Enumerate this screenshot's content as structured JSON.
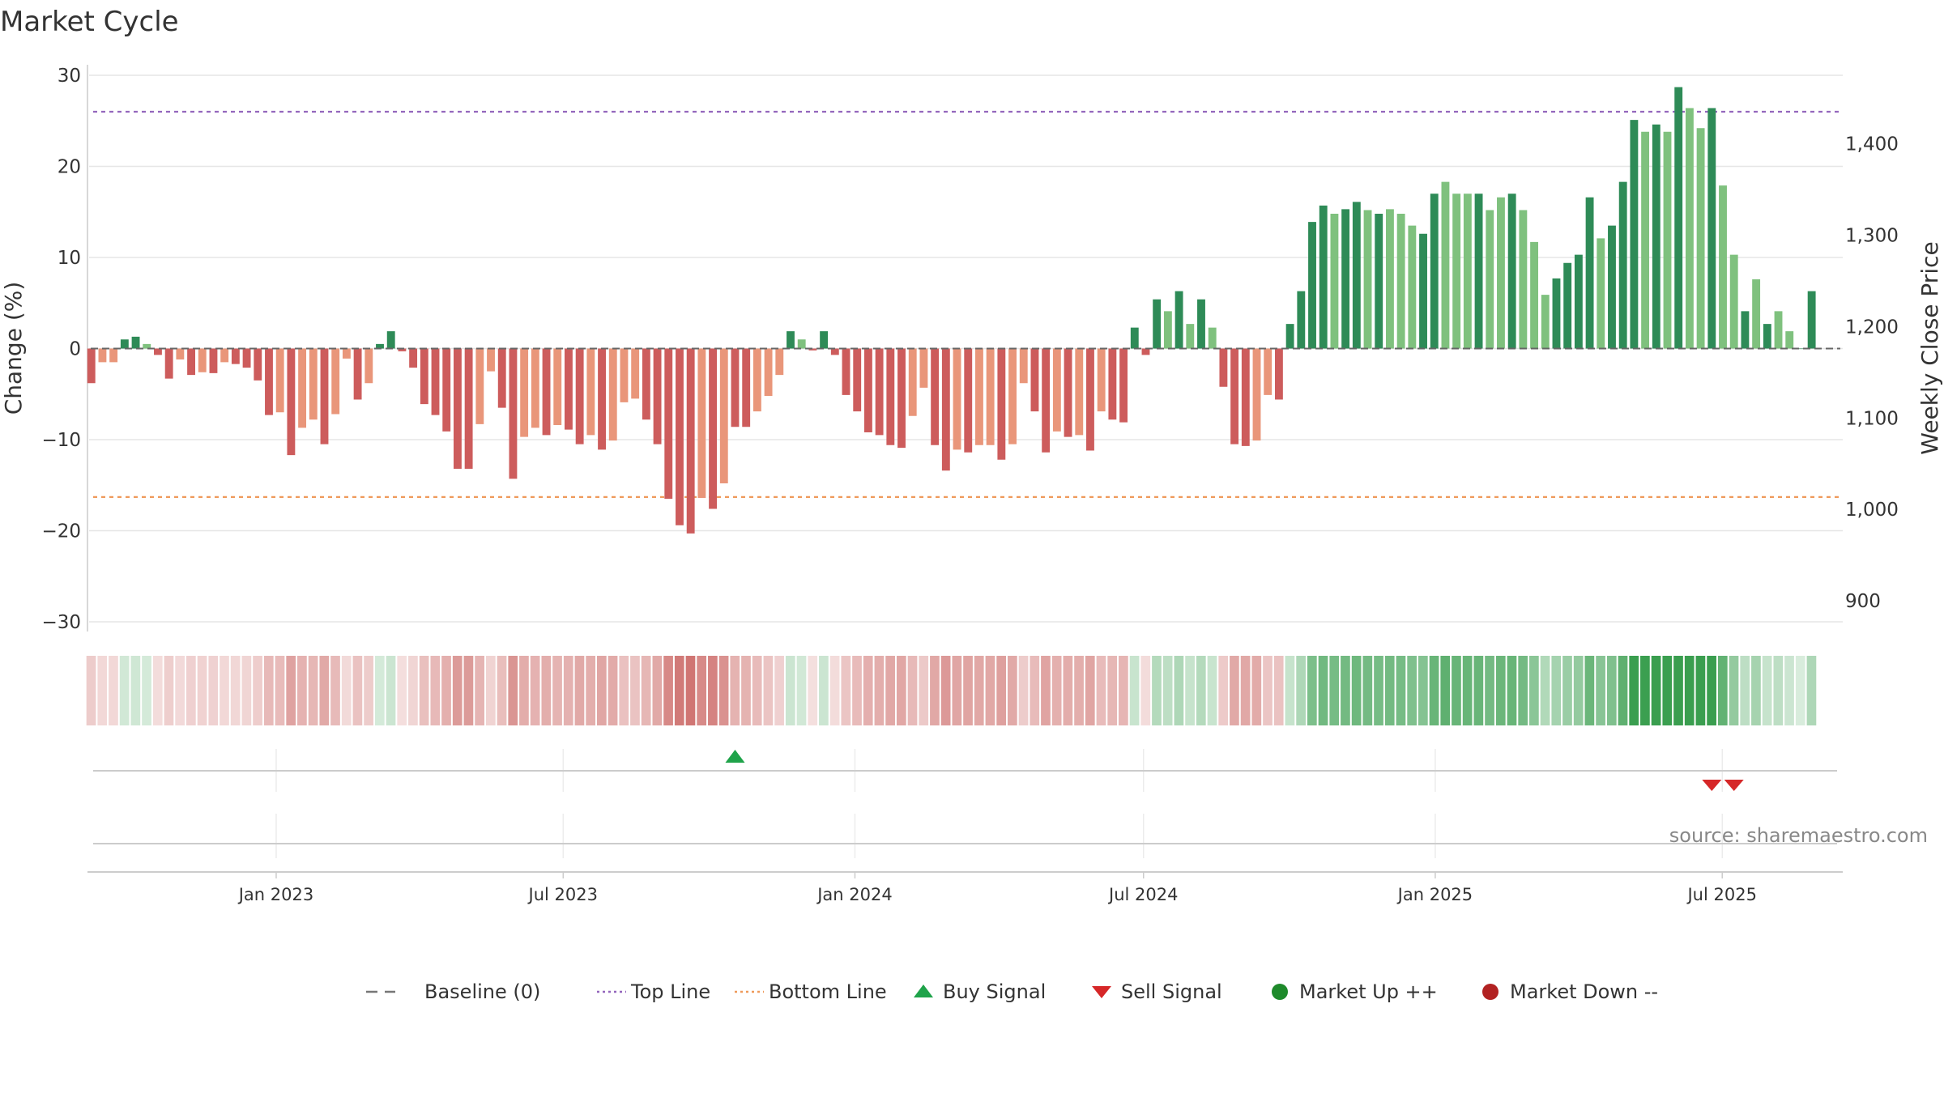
{
  "chart_data": {
    "type": "bar",
    "title": "Market Cycle",
    "ylabel": "Change (%)",
    "y2label": "Weekly Close Price",
    "ylim": [
      -30,
      30
    ],
    "y2lim": [
      877,
      1475
    ],
    "yticks": [
      "30",
      "20",
      "10",
      "0",
      "−10",
      "−20",
      "−30"
    ],
    "ytick_values": [
      30,
      20,
      10,
      0,
      -10,
      -20,
      -30
    ],
    "y2ticks": [
      "1,400",
      "1,300",
      "1,200",
      "1,100",
      "1,000",
      "900"
    ],
    "y2tick_values": [
      1400,
      1300,
      1200,
      1100,
      1000,
      900
    ],
    "x_range": [
      "2022-09-05",
      "2025-09-15"
    ],
    "x_ticks": [
      {
        "label": "Jan 2023",
        "date": "2023-01-01"
      },
      {
        "label": "Jul 2023",
        "date": "2023-07-01"
      },
      {
        "label": "Jan 2024",
        "date": "2024-01-01"
      },
      {
        "label": "Jul 2024",
        "date": "2024-07-01"
      },
      {
        "label": "Jan 2025",
        "date": "2025-01-01"
      },
      {
        "label": "Jul 2025",
        "date": "2025-07-01"
      }
    ],
    "start_week": "2022-09-05",
    "values": [
      -3.8,
      -1.5,
      -1.5,
      1,
      1.3,
      0.5,
      -0.7,
      -3.3,
      -1.2,
      -2.9,
      -2.6,
      -2.7,
      -1.5,
      -1.7,
      -2.1,
      -3.5,
      -7.3,
      -7,
      -11.7,
      -8.7,
      -7.8,
      -10.5,
      -7.2,
      -1.1,
      -5.6,
      -3.8,
      0.5,
      1.9,
      -0.3,
      -2.1,
      -6.1,
      -7.3,
      -9.1,
      -13.2,
      -13.2,
      -8.3,
      -2.5,
      -6.5,
      -14.3,
      -9.7,
      -8.7,
      -9.5,
      -8.4,
      -8.9,
      -10.5,
      -9.5,
      -11.1,
      -10.1,
      -5.9,
      -5.5,
      -7.8,
      -10.5,
      -16.5,
      -19.4,
      -20.3,
      -16.4,
      -17.6,
      -14.8,
      -8.6,
      -8.6,
      -6.9,
      -5.2,
      -2.9,
      1.9,
      1,
      -0.2,
      1.9,
      -0.7,
      -5.1,
      -6.9,
      -9.2,
      -9.5,
      -10.6,
      -10.9,
      -7.4,
      -4.3,
      -10.6,
      -13.4,
      -11.1,
      -11.4,
      -10.6,
      -10.6,
      -12.2,
      -10.5,
      -3.8,
      -6.9,
      -11.4,
      -9.1,
      -9.7,
      -9.5,
      -11.2,
      -6.9,
      -7.8,
      -8.1,
      2.3,
      -0.7,
      5.4,
      4.1,
      6.3,
      2.7,
      5.4,
      2.3,
      -4.2,
      -10.5,
      -10.7,
      -10.1,
      -5.1,
      -5.6,
      2.7,
      6.3,
      13.9,
      15.7,
      14.8,
      15.3,
      16.1,
      15.2,
      14.8,
      15.3,
      14.8,
      13.5,
      12.6,
      17,
      18.3,
      17,
      17,
      17,
      15.2,
      16.6,
      17,
      15.2,
      11.7,
      5.9,
      7.7,
      9.4,
      10.3,
      16.6,
      12.1,
      13.5,
      18.3,
      25.1,
      23.8,
      24.6,
      23.8,
      28.7,
      26.4,
      24.2,
      26.4,
      17.9,
      10.3,
      4.1,
      7.6,
      2.7,
      4.1,
      1.9,
      0,
      6.3
    ],
    "shades": [
      "d",
      "l",
      "l",
      "d",
      "d",
      "l",
      "d",
      "d",
      "l",
      "d",
      "l",
      "d",
      "l",
      "d",
      "d",
      "d",
      "d",
      "l",
      "d",
      "l",
      "l",
      "d",
      "l",
      "l",
      "d",
      "l",
      "d",
      "d",
      "d",
      "d",
      "d",
      "d",
      "d",
      "d",
      "d",
      "l",
      "l",
      "d",
      "d",
      "l",
      "l",
      "d",
      "l",
      "d",
      "d",
      "l",
      "d",
      "l",
      "l",
      "l",
      "d",
      "d",
      "d",
      "d",
      "d",
      "l",
      "d",
      "l",
      "d",
      "d",
      "l",
      "l",
      "l",
      "d",
      "l",
      "d",
      "d",
      "d",
      "d",
      "d",
      "d",
      "d",
      "d",
      "d",
      "l",
      "l",
      "d",
      "d",
      "l",
      "d",
      "l",
      "l",
      "d",
      "l",
      "l",
      "d",
      "d",
      "l",
      "d",
      "l",
      "d",
      "l",
      "d",
      "d",
      "d",
      "d",
      "d",
      "l",
      "d",
      "l",
      "d",
      "l",
      "d",
      "d",
      "d",
      "l",
      "l",
      "d",
      "d",
      "d",
      "d",
      "d",
      "l",
      "d",
      "d",
      "l",
      "d",
      "l",
      "l",
      "l",
      "d",
      "d",
      "l",
      "l",
      "l",
      "d",
      "l",
      "l",
      "d",
      "l",
      "l",
      "l",
      "d",
      "d",
      "d",
      "d",
      "l",
      "d",
      "d",
      "d",
      "l",
      "d",
      "l",
      "d",
      "l",
      "l",
      "d",
      "l",
      "l",
      "d",
      "l",
      "d",
      "l",
      "l",
      "d",
      "d"
    ],
    "top_line": 26,
    "bottom_line": -16.3,
    "buy_signals": [
      "2023-10-16"
    ],
    "sell_signals": [
      "2025-06-23",
      "2025-07-07"
    ],
    "source": "source: sharemaestro.com",
    "legend": [
      {
        "label": "Baseline (0)",
        "symbol": "dash",
        "color": "#777777"
      },
      {
        "label": "Top Line",
        "symbol": "dot",
        "color": "#9467bd"
      },
      {
        "label": "Bottom Line",
        "symbol": "dot",
        "color": "#ef9a5b"
      },
      {
        "label": "Buy Signal",
        "symbol": "triangle-up",
        "color": "#1fa34a"
      },
      {
        "label": "Sell Signal",
        "symbol": "triangle-down",
        "color": "#d62728"
      },
      {
        "label": "Market Up ++",
        "symbol": "circle",
        "color": "#1e8a2b"
      },
      {
        "label": "Market Down --",
        "symbol": "circle",
        "color": "#b22222"
      }
    ],
    "colors": {
      "up_dark": "#2e8b57",
      "up_light": "#7fc17e",
      "down_dark": "#cd5c5c",
      "down_light": "#e9967a",
      "top_line": "#9467bd",
      "bottom_line": "#ef9a5b",
      "buy": "#1fa34a",
      "sell": "#d62728"
    }
  }
}
